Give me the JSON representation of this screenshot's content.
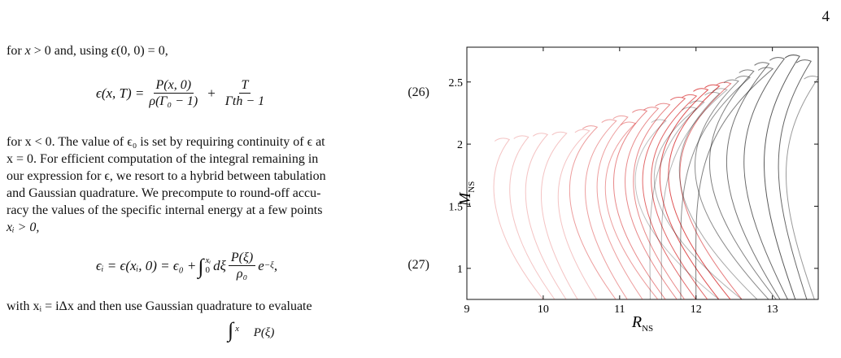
{
  "page_number": "4",
  "para1": {
    "a": "for ",
    "b": "x",
    "c": " > 0 and, using ",
    "d": "ϵ",
    "e": "(0, 0) = 0,"
  },
  "eq26": {
    "lhs": "ϵ(x, T) =",
    "f1_num": "P(x, 0)",
    "f1_den": "ρ(Γ₀ − 1)",
    "plus": "+",
    "f2_num": "T",
    "f2_den": "Γth − 1",
    "number": "(26)"
  },
  "para2": {
    "l1": "for x < 0. The value of ϵ₀ is set by requiring continuity of ϵ at",
    "l2": "x = 0. For efficient computation of the integral remaining in",
    "l3": "our expression for ϵ, we resort to a hybrid between tabulation",
    "l4": "and Gaussian quadrature. We precompute to round-off accu-",
    "l5": "racy the values of the specific internal energy at a few points",
    "l6": "xᵢ > 0,"
  },
  "eq27": {
    "lhs": "ϵᵢ = ϵ(xᵢ, 0) = ϵ₀ +",
    "int_upper": "xᵢ",
    "int_lower": "0",
    "dxi": "dξ",
    "f_num": "P(ξ)",
    "f_den": "ρ₀",
    "exp": "e",
    "exp_sup": "−ξ",
    "tail": ",",
    "number": "(27)"
  },
  "para3": "with xᵢ = iΔx and then use Gaussian quadrature to evaluate",
  "partial_eq": {
    "upper": "x",
    "num": "P(ξ)"
  },
  "chart_data": {
    "type": "line",
    "xlabel": "R",
    "xlabel_sub": "NS",
    "ylabel": "M",
    "ylabel_sub": "NS",
    "xlim": [
      9.0,
      13.6
    ],
    "ylim": [
      0.75,
      2.78
    ],
    "xticks": [
      "9",
      "10",
      "11",
      "12",
      "13"
    ],
    "yticks": [
      "1",
      "1.5",
      "2",
      "2.5"
    ],
    "colors": {
      "red": "#d62728",
      "black": "#000000"
    },
    "curve_model": "mass-radius sequences, each specified by max mass point (radius, mass), radius of M=0.75 end, turning radius",
    "curves": [
      {
        "color": "red",
        "alpha": 0.28,
        "max_radius": 9.45,
        "max_mass": 2.05,
        "base_radius": 10.0,
        "min_radius": 9.3
      },
      {
        "color": "red",
        "alpha": 0.28,
        "max_radius": 9.7,
        "max_mass": 2.07,
        "base_radius": 10.15,
        "min_radius": 9.5
      },
      {
        "color": "red",
        "alpha": 0.28,
        "max_radius": 9.95,
        "max_mass": 2.09,
        "base_radius": 10.3,
        "min_radius": 9.7
      },
      {
        "color": "red",
        "alpha": 0.28,
        "max_radius": 10.2,
        "max_mass": 2.1,
        "base_radius": 10.45,
        "min_radius": 9.9
      },
      {
        "color": "red",
        "alpha": 0.28,
        "max_radius": 10.5,
        "max_mass": 2.12,
        "base_radius": 10.7,
        "min_radius": 10.1
      },
      {
        "color": "red",
        "alpha": 0.45,
        "max_radius": 10.6,
        "max_mass": 2.15,
        "base_radius": 10.95,
        "min_radius": 10.25
      },
      {
        "color": "red",
        "alpha": 0.45,
        "max_radius": 10.85,
        "max_mass": 2.2,
        "base_radius": 11.1,
        "min_radius": 10.45
      },
      {
        "color": "red",
        "alpha": 0.45,
        "max_radius": 11.0,
        "max_mass": 2.23,
        "base_radius": 11.3,
        "min_radius": 10.6
      },
      {
        "color": "red",
        "alpha": 0.45,
        "max_radius": 11.1,
        "max_mass": 2.18,
        "base_radius": 11.5,
        "min_radius": 10.7
      },
      {
        "color": "red",
        "alpha": 0.55,
        "max_radius": 11.25,
        "max_mass": 2.28,
        "base_radius": 11.6,
        "min_radius": 10.8
      },
      {
        "color": "red",
        "alpha": 0.55,
        "max_radius": 11.4,
        "max_mass": 2.3,
        "base_radius": 11.75,
        "min_radius": 10.95
      },
      {
        "color": "red",
        "alpha": 0.55,
        "max_radius": 11.55,
        "max_mass": 2.33,
        "base_radius": 11.85,
        "min_radius": 11.05
      },
      {
        "color": "red",
        "alpha": 0.7,
        "max_radius": 11.75,
        "max_mass": 2.38,
        "base_radius": 12.0,
        "min_radius": 11.15
      },
      {
        "color": "red",
        "alpha": 0.7,
        "max_radius": 11.9,
        "max_mass": 2.4,
        "base_radius": 12.15,
        "min_radius": 11.25
      },
      {
        "color": "red",
        "alpha": 0.8,
        "max_radius": 12.05,
        "max_mass": 2.45,
        "base_radius": 12.3,
        "min_radius": 11.35
      },
      {
        "color": "red",
        "alpha": 0.8,
        "max_radius": 12.2,
        "max_mass": 2.48,
        "base_radius": 12.45,
        "min_radius": 11.45
      },
      {
        "color": "red",
        "alpha": 0.6,
        "max_radius": 12.35,
        "max_mass": 2.5,
        "base_radius": 12.6,
        "min_radius": 11.6
      },
      {
        "color": "black",
        "alpha": 0.25,
        "max_radius": 11.5,
        "max_mass": 2.2,
        "base_radius": 12.3,
        "min_radius": 11.05
      },
      {
        "color": "black",
        "alpha": 0.3,
        "max_radius": 11.9,
        "max_mass": 2.3,
        "base_radius": 12.6,
        "min_radius": 11.25
      },
      {
        "color": "black",
        "alpha": 0.35,
        "max_radius": 12.2,
        "max_mass": 2.42,
        "base_radius": 12.8,
        "min_radius": 11.6
      },
      {
        "color": "black",
        "alpha": 0.45,
        "max_radius": 12.45,
        "max_mass": 2.52,
        "base_radius": 12.95,
        "min_radius": 11.8
      },
      {
        "color": "black",
        "alpha": 0.5,
        "max_radius": 12.65,
        "max_mass": 2.6,
        "base_radius": 13.05,
        "min_radius": 12.0
      },
      {
        "color": "black",
        "alpha": 0.55,
        "max_radius": 12.85,
        "max_mass": 2.66,
        "base_radius": 13.1,
        "min_radius": 12.25
      },
      {
        "color": "black",
        "alpha": 0.6,
        "max_radius": 13.05,
        "max_mass": 2.7,
        "base_radius": 13.2,
        "min_radius": 12.5
      },
      {
        "color": "black",
        "alpha": 0.65,
        "max_radius": 13.25,
        "max_mass": 2.72,
        "base_radius": 13.3,
        "min_radius": 12.8
      },
      {
        "color": "black",
        "alpha": 0.6,
        "max_radius": 13.4,
        "max_mass": 2.68,
        "base_radius": 13.45,
        "min_radius": 13.0
      },
      {
        "color": "black",
        "alpha": 0.4,
        "max_radius": 13.5,
        "max_mass": 2.55,
        "base_radius": 13.55,
        "min_radius": 13.1
      },
      {
        "color": "black",
        "alpha": 0.3,
        "max_radius": 12.0,
        "max_mass": 2.35,
        "base_radius": 11.4,
        "min_radius": 11.4
      },
      {
        "color": "black",
        "alpha": 0.3,
        "max_radius": 12.3,
        "max_mass": 2.45,
        "base_radius": 11.55,
        "min_radius": 11.55
      },
      {
        "color": "black",
        "alpha": 0.45,
        "max_radius": 12.6,
        "max_mass": 2.55,
        "base_radius": 11.8,
        "min_radius": 11.8
      },
      {
        "color": "black",
        "alpha": 0.5,
        "max_radius": 12.9,
        "max_mass": 2.62,
        "base_radius": 12.0,
        "min_radius": 12.0
      }
    ]
  }
}
